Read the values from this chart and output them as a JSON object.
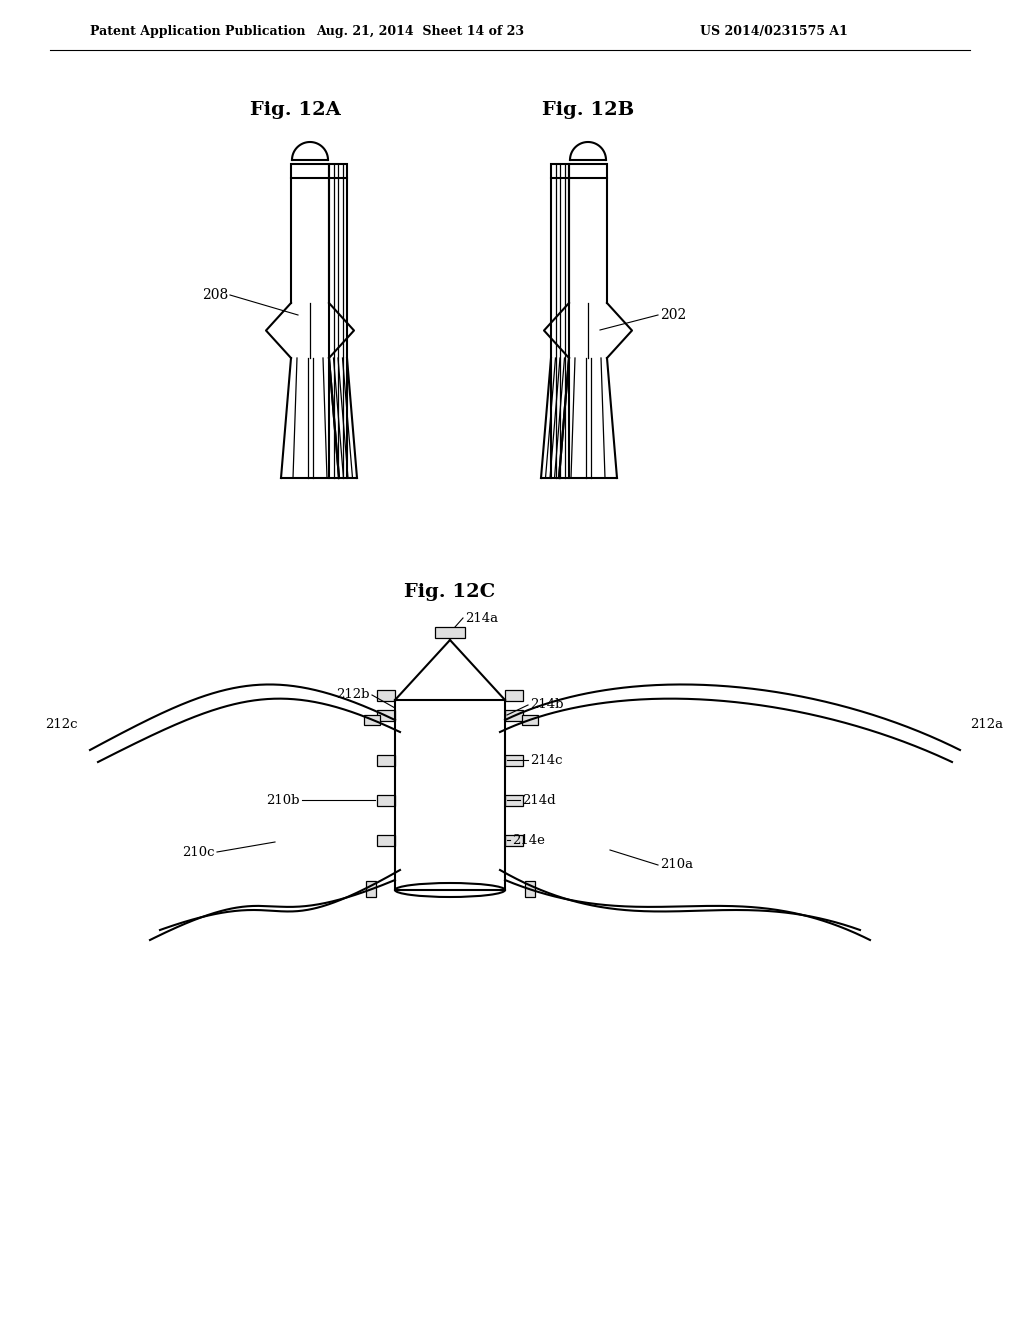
{
  "header_left": "Patent Application Publication",
  "header_mid": "Aug. 21, 2014  Sheet 14 of 23",
  "header_right": "US 2014/0231575 A1",
  "fig12A_label": "Fig. 12A",
  "fig12B_label": "Fig. 12B",
  "fig12C_label": "Fig. 12C",
  "label_208": "208",
  "label_202": "202",
  "label_214a": "214a",
  "label_214b": "214b",
  "label_214c": "214c",
  "label_214d": "214d",
  "label_214e": "214e",
  "label_212a": "212a",
  "label_212b": "212b",
  "label_212c": "212c",
  "label_210a": "210a",
  "label_210b": "210b",
  "label_210c": "210c",
  "bg_color": "#ffffff",
  "line_color": "#000000"
}
